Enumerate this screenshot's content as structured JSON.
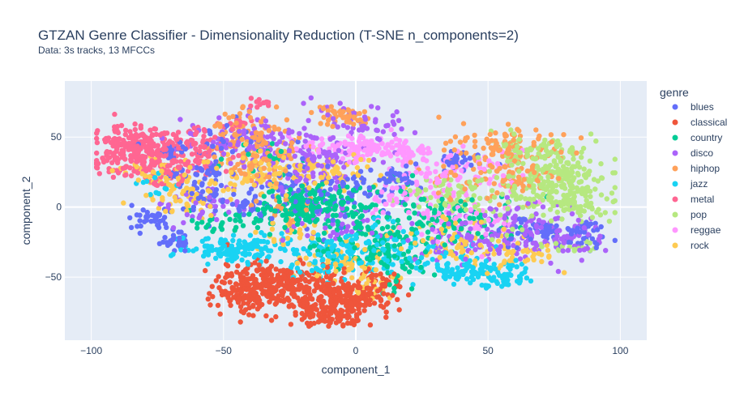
{
  "chart_data": {
    "type": "scatter",
    "title": "GTZAN Genre Classifier - Dimensionality Reduction (T-SNE n_components=2)",
    "subtitle": "Data: 3s tracks, 13 MFCCs",
    "xlabel": "component_1",
    "ylabel": "component_2",
    "xlim": [
      -110,
      110
    ],
    "ylim": [
      -95,
      90
    ],
    "xticks": [
      -100,
      -50,
      0,
      50,
      100
    ],
    "yticks": [
      -50,
      0,
      50
    ],
    "grid": true,
    "legend": {
      "title": "genre",
      "placement": "right"
    },
    "series": [
      {
        "name": "blues",
        "color": "#636efa",
        "clusters": [
          [
            -68,
            -24,
            3,
            4,
            30
          ],
          [
            -70,
            40,
            3,
            2,
            22
          ],
          [
            -68,
            23,
            3,
            2,
            20
          ],
          [
            -77,
            -9,
            5,
            4,
            40
          ],
          [
            -55,
            27,
            3,
            3,
            22
          ],
          [
            -40,
            1,
            5,
            4,
            35
          ],
          [
            16,
            21,
            3,
            3,
            30
          ],
          [
            -8,
            8,
            14,
            14,
            70
          ],
          [
            38,
            32,
            5,
            4,
            30
          ],
          [
            65,
            -17,
            7,
            4,
            45
          ],
          [
            85,
            -20,
            6,
            5,
            45
          ],
          [
            -50,
            50,
            8,
            6,
            30
          ],
          [
            -25,
            15,
            12,
            10,
            50
          ],
          [
            -60,
            10,
            6,
            6,
            25
          ]
        ]
      },
      {
        "name": "classical",
        "color": "#ef553b",
        "clusters": [
          [
            -30,
            -55,
            12,
            8,
            260
          ],
          [
            -5,
            -65,
            10,
            8,
            220
          ],
          [
            -40,
            -62,
            6,
            6,
            80
          ],
          [
            -10,
            -78,
            6,
            4,
            60
          ],
          [
            10,
            -52,
            4,
            4,
            25
          ]
        ]
      },
      {
        "name": "country",
        "color": "#00cc96",
        "clusters": [
          [
            -20,
            0,
            8,
            6,
            120
          ],
          [
            -5,
            5,
            12,
            10,
            80
          ],
          [
            5,
            -25,
            12,
            10,
            110
          ],
          [
            35,
            -10,
            15,
            10,
            110
          ],
          [
            15,
            -45,
            6,
            6,
            30
          ],
          [
            -45,
            -10,
            10,
            6,
            40
          ],
          [
            -35,
            35,
            8,
            6,
            20
          ]
        ]
      },
      {
        "name": "disco",
        "color": "#ab63fa",
        "clusters": [
          [
            -35,
            45,
            15,
            10,
            120
          ],
          [
            -15,
            30,
            12,
            10,
            100
          ],
          [
            5,
            60,
            8,
            6,
            40
          ],
          [
            60,
            -15,
            15,
            10,
            110
          ],
          [
            75,
            -25,
            8,
            5,
            50
          ],
          [
            40,
            -25,
            10,
            8,
            50
          ],
          [
            -55,
            0,
            8,
            8,
            40
          ],
          [
            -10,
            -10,
            10,
            8,
            40
          ]
        ]
      },
      {
        "name": "hiphop",
        "color": "#ffa15a",
        "clusters": [
          [
            -40,
            50,
            8,
            8,
            90
          ],
          [
            -5,
            65,
            6,
            4,
            50
          ],
          [
            -35,
            32,
            8,
            6,
            50
          ],
          [
            55,
            45,
            10,
            6,
            70
          ],
          [
            60,
            25,
            10,
            10,
            80
          ],
          [
            -25,
            0,
            6,
            6,
            25
          ],
          [
            40,
            20,
            10,
            8,
            30
          ]
        ]
      },
      {
        "name": "jazz",
        "color": "#19d3f3",
        "clusters": [
          [
            -45,
            -30,
            9,
            5,
            130
          ],
          [
            -15,
            -35,
            10,
            8,
            110
          ],
          [
            10,
            -28,
            6,
            8,
            50
          ],
          [
            45,
            -45,
            10,
            5,
            90
          ],
          [
            55,
            -52,
            5,
            3,
            30
          ],
          [
            30,
            -35,
            10,
            8,
            40
          ],
          [
            -75,
            15,
            5,
            5,
            15
          ]
        ]
      },
      {
        "name": "metal",
        "color": "#ff6692",
        "clusters": [
          [
            -80,
            45,
            9,
            7,
            160
          ],
          [
            -88,
            32,
            8,
            6,
            100
          ],
          [
            -70,
            28,
            8,
            6,
            60
          ],
          [
            -45,
            60,
            3,
            2,
            10
          ],
          [
            -36,
            75,
            2,
            2,
            12
          ],
          [
            -57,
            35,
            6,
            6,
            40
          ],
          [
            -60,
            52,
            4,
            4,
            20
          ]
        ]
      },
      {
        "name": "pop",
        "color": "#b6e880",
        "clusters": [
          [
            75,
            22,
            10,
            12,
            220
          ],
          [
            85,
            2,
            6,
            5,
            60
          ],
          [
            65,
            40,
            7,
            4,
            50
          ],
          [
            50,
            5,
            12,
            10,
            70
          ],
          [
            30,
            10,
            8,
            6,
            30
          ],
          [
            80,
            -28,
            5,
            3,
            20
          ]
        ]
      },
      {
        "name": "reggae",
        "color": "#ff97ff",
        "clusters": [
          [
            5,
            42,
            6,
            4,
            90
          ],
          [
            20,
            38,
            4,
            3,
            30
          ],
          [
            30,
            25,
            10,
            10,
            80
          ],
          [
            40,
            -5,
            12,
            10,
            70
          ],
          [
            15,
            5,
            8,
            6,
            30
          ],
          [
            -15,
            45,
            6,
            4,
            25
          ],
          [
            55,
            30,
            6,
            6,
            25
          ]
        ]
      },
      {
        "name": "rock",
        "color": "#fecb52",
        "clusters": [
          [
            -65,
            10,
            8,
            8,
            70
          ],
          [
            -35,
            25,
            10,
            8,
            80
          ],
          [
            -10,
            25,
            10,
            8,
            70
          ],
          [
            -5,
            -40,
            8,
            8,
            60
          ],
          [
            35,
            -25,
            10,
            8,
            60
          ],
          [
            60,
            -35,
            8,
            6,
            40
          ],
          [
            -75,
            25,
            6,
            6,
            30
          ],
          [
            -25,
            -20,
            8,
            6,
            30
          ],
          [
            5,
            -60,
            6,
            6,
            20
          ]
        ]
      }
    ]
  }
}
